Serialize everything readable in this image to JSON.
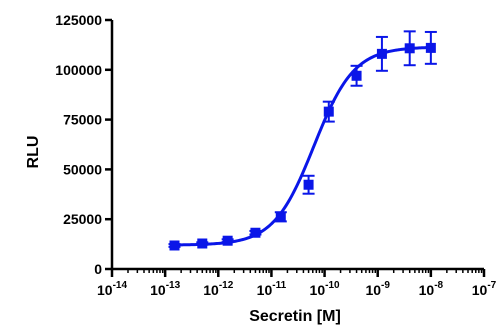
{
  "chart_data": {
    "type": "scatter",
    "title": "",
    "xlabel": "Secretin [M]",
    "ylabel": "RLU",
    "x_scale": "log10",
    "xlim": [
      1e-14,
      1e-07
    ],
    "ylim": [
      0,
      125000
    ],
    "x_ticks": [
      {
        "value": 1e-14,
        "base": "10",
        "exp": "-14"
      },
      {
        "value": 1e-13,
        "base": "10",
        "exp": "-13"
      },
      {
        "value": 1e-12,
        "base": "10",
        "exp": "-12"
      },
      {
        "value": 1e-11,
        "base": "10",
        "exp": "-11"
      },
      {
        "value": 1e-10,
        "base": "10",
        "exp": "-10"
      },
      {
        "value": 1e-09,
        "base": "10",
        "exp": "-9"
      },
      {
        "value": 1e-08,
        "base": "10",
        "exp": "-8"
      },
      {
        "value": 1e-07,
        "base": "10",
        "exp": "-7"
      }
    ],
    "y_ticks": [
      {
        "value": 0,
        "label": "0"
      },
      {
        "value": 25000,
        "label": "25000"
      },
      {
        "value": 50000,
        "label": "50000"
      },
      {
        "value": 75000,
        "label": "75000"
      },
      {
        "value": 100000,
        "label": "100000"
      },
      {
        "value": 125000,
        "label": "125000"
      }
    ],
    "grid": false,
    "color": "#0a16e8",
    "series": [
      {
        "marker": "square",
        "points": [
          {
            "x": 1.5e-13,
            "y": 11800,
            "err": 700
          },
          {
            "x": 5e-13,
            "y": 12800,
            "err": 600
          },
          {
            "x": 1.5e-12,
            "y": 14200,
            "err": 700
          },
          {
            "x": 5e-12,
            "y": 18200,
            "err": 900
          },
          {
            "x": 1.5e-11,
            "y": 26200,
            "err": 2300
          },
          {
            "x": 5e-11,
            "y": 42300,
            "err": 4500
          },
          {
            "x": 1.2e-10,
            "y": 79000,
            "err": 5000
          },
          {
            "x": 4e-10,
            "y": 97000,
            "err": 5000
          },
          {
            "x": 1.2e-09,
            "y": 108000,
            "err": 8500
          },
          {
            "x": 4e-09,
            "y": 110800,
            "err": 8500
          },
          {
            "x": 1e-08,
            "y": 111000,
            "err": 8000
          }
        ]
      }
    ],
    "fit": {
      "type": "four-parameter-logistic",
      "bottom": 12000,
      "top": 111500,
      "log_ec50": -10.2,
      "hill": 1.15,
      "x_from": 1.5e-13,
      "x_to": 1e-08
    }
  }
}
